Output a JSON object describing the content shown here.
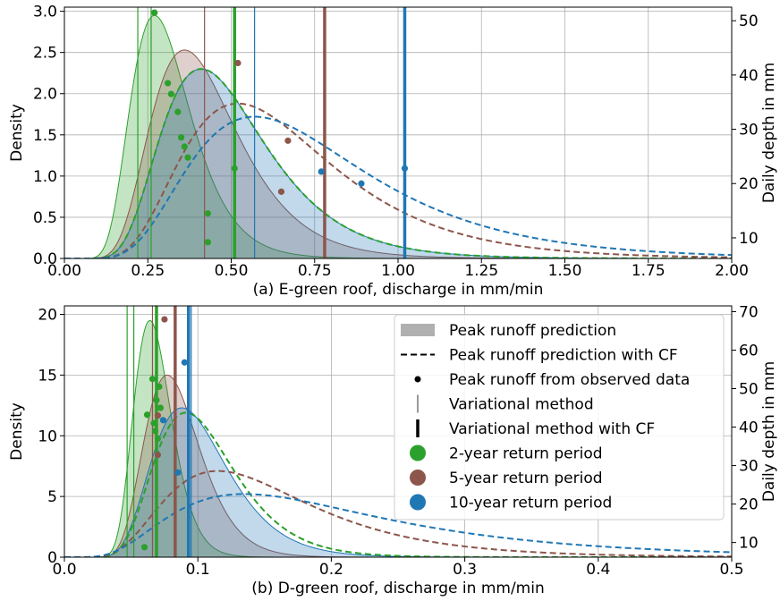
{
  "colors": {
    "two_year": "#2ca02c",
    "five_year": "#8c564b",
    "ten_year": "#1f77b4",
    "legend_patch": "#b0b0b0"
  },
  "chart_data": [
    {
      "type": "area",
      "xlabel": "(a) E-green roof, discharge in mm/min",
      "ylabel": "Density",
      "y2label": "Daily depth in mm",
      "xlim": [
        0,
        2.0
      ],
      "ylim": [
        0,
        3.05
      ],
      "y2lim": [
        6.2,
        52.5
      ],
      "grid": true,
      "x_ticks": [
        "0.00",
        "0.25",
        "0.50",
        "0.75",
        "1.00",
        "1.25",
        "1.50",
        "1.75",
        "2.00"
      ],
      "x_tick_values": [
        0,
        0.25,
        0.5,
        0.75,
        1.0,
        1.25,
        1.5,
        1.75,
        2.0
      ],
      "y_ticks": [
        "0.0",
        "0.5",
        "1.0",
        "1.5",
        "2.0",
        "2.5",
        "3.0"
      ],
      "y_tick_values": [
        0,
        0.5,
        1.0,
        1.5,
        2.0,
        2.5,
        3.0
      ],
      "y2_ticks": [
        "10",
        "20",
        "30",
        "40",
        "50"
      ],
      "y2_tick_values": [
        10,
        20,
        30,
        40,
        50
      ],
      "series": [
        {
          "key": "two_year",
          "type": "lognormal",
          "peak_x": 0.27,
          "peak_y": 2.95,
          "sigma": 0.33,
          "fill": true
        },
        {
          "key": "five_year",
          "type": "lognormal",
          "peak_x": 0.36,
          "peak_y": 2.53,
          "sigma": 0.36,
          "fill": true
        },
        {
          "key": "ten_year",
          "type": "lognormal",
          "peak_x": 0.41,
          "peak_y": 2.3,
          "sigma": 0.38,
          "fill": true
        },
        {
          "key": "two_year",
          "type": "lognormal",
          "peak_x": 0.41,
          "peak_y": 2.3,
          "sigma": 0.38,
          "fill": false,
          "dashed": true
        },
        {
          "key": "five_year",
          "type": "lognormal",
          "peak_x": 0.52,
          "peak_y": 1.88,
          "sigma": 0.43,
          "fill": false,
          "dashed": true
        },
        {
          "key": "ten_year",
          "type": "lognormal",
          "peak_x": 0.57,
          "peak_y": 1.72,
          "sigma": 0.46,
          "fill": false,
          "dashed": true
        }
      ],
      "observed": {
        "two_year": [
          [
            0.27,
            51.5
          ],
          [
            0.31,
            38.5
          ],
          [
            0.32,
            36.5
          ],
          [
            0.34,
            33.2
          ],
          [
            0.35,
            28.5
          ],
          [
            0.36,
            26.8
          ],
          [
            0.37,
            24.8
          ],
          [
            0.43,
            14.5
          ],
          [
            0.43,
            9.2
          ],
          [
            0.51,
            22.8
          ]
        ],
        "five_year": [
          [
            0.52,
            42.2
          ],
          [
            0.67,
            27.9
          ],
          [
            0.65,
            18.5
          ]
        ],
        "ten_year": [
          [
            0.77,
            22.2
          ],
          [
            0.89,
            20.0
          ],
          [
            1.02,
            22.8
          ]
        ]
      },
      "variational": {
        "two_year": 0.22,
        "five_year": 0.42,
        "ten_year": 0.57
      },
      "variational_cf": {
        "two_year": 0.51,
        "five_year": 0.78,
        "ten_year": 1.02
      },
      "extra_thin_lines": [
        0.26
      ]
    },
    {
      "type": "area",
      "xlabel": "(b) D-green roof, discharge in mm/min",
      "ylabel": "Density",
      "y2label": "Daily depth in mm",
      "xlim": [
        0,
        0.5
      ],
      "ylim": [
        0,
        20.7
      ],
      "y2lim": [
        6.2,
        71.5
      ],
      "grid": true,
      "x_ticks": [
        "0.0",
        "0.1",
        "0.2",
        "0.3",
        "0.4",
        "0.5"
      ],
      "x_tick_values": [
        0,
        0.1,
        0.2,
        0.3,
        0.4,
        0.5
      ],
      "y_ticks": [
        "0",
        "5",
        "10",
        "15",
        "20"
      ],
      "y_tick_values": [
        0,
        5,
        10,
        15,
        20
      ],
      "y2_ticks": [
        "10",
        "20",
        "30",
        "40",
        "50",
        "60",
        "70"
      ],
      "y2_tick_values": [
        10,
        20,
        30,
        40,
        50,
        60,
        70
      ],
      "series": [
        {
          "key": "two_year",
          "type": "lognormal",
          "peak_x": 0.064,
          "peak_y": 19.5,
          "sigma": 0.22,
          "fill": true
        },
        {
          "key": "five_year",
          "type": "lognormal",
          "peak_x": 0.077,
          "peak_y": 15.0,
          "sigma": 0.27,
          "fill": true
        },
        {
          "key": "ten_year",
          "type": "lognormal",
          "peak_x": 0.088,
          "peak_y": 12.3,
          "sigma": 0.32,
          "fill": true
        },
        {
          "key": "two_year",
          "type": "lognormal",
          "peak_x": 0.091,
          "peak_y": 11.9,
          "sigma": 0.33,
          "fill": false,
          "dashed": true
        },
        {
          "key": "five_year",
          "type": "lognormal",
          "peak_x": 0.115,
          "peak_y": 7.1,
          "sigma": 0.47,
          "fill": false,
          "dashed": true
        },
        {
          "key": "ten_year",
          "type": "lognormal",
          "peak_x": 0.135,
          "peak_y": 5.2,
          "sigma": 0.58,
          "fill": false,
          "dashed": true
        }
      ],
      "observed": {
        "two_year": [
          [
            0.06,
            8.8
          ],
          [
            0.062,
            43.2
          ],
          [
            0.066,
            52.5
          ],
          [
            0.067,
            41.0
          ],
          [
            0.068,
            39.0
          ],
          [
            0.069,
            47.0
          ],
          [
            0.07,
            37.0
          ],
          [
            0.071,
            50.5
          ],
          [
            0.072,
            45.0
          ]
        ],
        "five_year": [
          [
            0.07,
            43.0
          ],
          [
            0.07,
            32.8
          ],
          [
            0.075,
            68.0
          ]
        ],
        "ten_year": [
          [
            0.074,
            41.8
          ],
          [
            0.085,
            28.2
          ],
          [
            0.09,
            56.8
          ]
        ]
      },
      "variational": {
        "two_year": 0.052,
        "five_year": 0.066,
        "ten_year": 0.095
      },
      "variational_cf": {
        "two_year": 0.069,
        "five_year": 0.083,
        "ten_year": 0.093
      },
      "extra_thin_lines": [
        0.047
      ]
    }
  ],
  "legend": {
    "placement": "upper-right of panel (b)",
    "items": [
      {
        "label": "Peak runoff prediction",
        "kind": "patch"
      },
      {
        "label": "Peak runoff prediction with CF",
        "kind": "dashed"
      },
      {
        "label": "Peak runoff from observed data",
        "kind": "dot"
      },
      {
        "label": "Variational method",
        "kind": "thin"
      },
      {
        "label": "Variational method with CF",
        "kind": "thick"
      },
      {
        "label": "2-year return period",
        "kind": "circle",
        "color": "two_year"
      },
      {
        "label": "5-year return period",
        "kind": "circle",
        "color": "five_year"
      },
      {
        "label": "10-year return period",
        "kind": "circle",
        "color": "ten_year"
      }
    ]
  }
}
